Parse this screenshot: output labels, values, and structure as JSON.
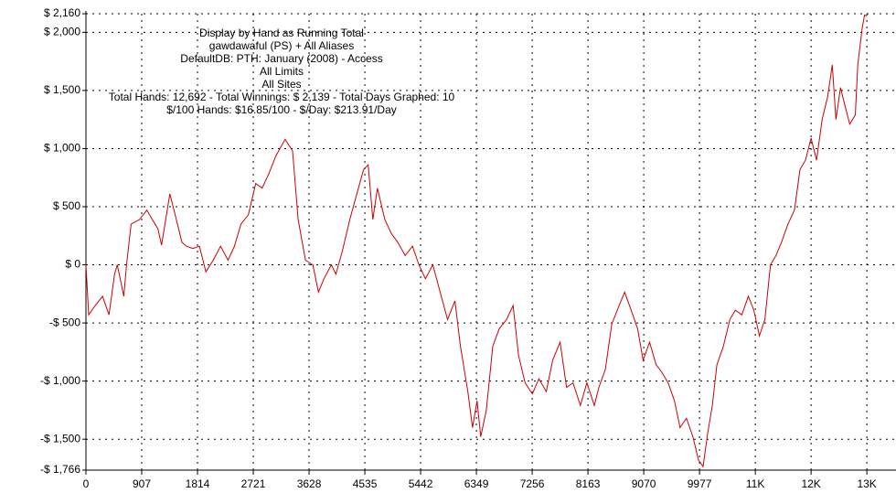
{
  "chart_data": {
    "type": "line",
    "annotations": [
      "Display by Hand as Running Total",
      "gawdawaful (PS) + All Aliases",
      "DefaultDB: PTH: January (2008) - Access",
      "All Limits",
      "All Sites",
      "Total Hands: 12,692 - Total Winnings: $ 2,139 - Total Days Graphed: 10",
      "$/100 Hands: $16.85/100 - $/Day: $213.91/Day"
    ],
    "color": "#cc0000",
    "grid": true,
    "xlim": [
      0,
      12800
    ],
    "ylim": [
      -1766,
      2160
    ],
    "xticks": [
      0,
      907,
      1814,
      2721,
      3628,
      4535,
      5442,
      6349,
      7256,
      8163,
      9070,
      9977,
      {
        "value": 10884,
        "label": "11K"
      },
      {
        "value": 11791,
        "label": "12K"
      },
      {
        "value": 12698,
        "label": "13K"
      }
    ],
    "yticks": [
      {
        "value": -1766,
        "label": "-$ 1,766"
      },
      {
        "value": -1500,
        "label": "-$ 1,500"
      },
      {
        "value": -1000,
        "label": "-$ 1,000"
      },
      {
        "value": -500,
        "label": "-$ 500"
      },
      {
        "value": 0,
        "label": "$ 0"
      },
      {
        "value": 500,
        "label": "$ 500"
      },
      {
        "value": 1000,
        "label": "$ 1,000"
      },
      {
        "value": 1500,
        "label": "$ 1,500"
      },
      {
        "value": 2000,
        "label": "$ 2,000"
      },
      {
        "value": 2160,
        "label": "$ 2,160"
      }
    ],
    "x": [
      0,
      45,
      150,
      270,
      375,
      465,
      510,
      615,
      660,
      735,
      870,
      990,
      1080,
      1170,
      1230,
      1365,
      1470,
      1560,
      1635,
      1740,
      1845,
      1950,
      2070,
      2190,
      2310,
      2415,
      2520,
      2640,
      2760,
      2865,
      2970,
      3090,
      3240,
      3360,
      3450,
      3570,
      3690,
      3780,
      3870,
      3990,
      4065,
      4170,
      4290,
      4395,
      4515,
      4590,
      4665,
      4740,
      4860,
      4965,
      5070,
      5190,
      5310,
      5415,
      5520,
      5640,
      5760,
      5880,
      6000,
      6090,
      6210,
      6285,
      6360,
      6420,
      6510,
      6615,
      6720,
      6840,
      6945,
      7035,
      7140,
      7260,
      7365,
      7485,
      7590,
      7710,
      7815,
      7920,
      8040,
      8145,
      8265,
      8340,
      8445,
      8550,
      8670,
      8760,
      8865,
      8970,
      9060,
      9165,
      9270,
      9360,
      9465,
      9570,
      9660,
      9765,
      9870,
      9960,
      10035,
      10110,
      10185,
      10260,
      10365,
      10470,
      10560,
      10665,
      10770,
      10860,
      10950,
      11040,
      11130,
      11220,
      11310,
      11415,
      11520,
      11610,
      11700,
      11790,
      11880,
      11970,
      12060,
      12135,
      12195,
      12270,
      12360,
      12420,
      12510,
      12550,
      12620,
      12660,
      12692
    ],
    "values": [
      0,
      -430,
      -350,
      -270,
      -430,
      -80,
      0,
      -270,
      0,
      350,
      390,
      470,
      390,
      310,
      170,
      610,
      390,
      195,
      160,
      140,
      160,
      -60,
      40,
      160,
      40,
      160,
      350,
      430,
      700,
      660,
      780,
      940,
      1080,
      980,
      390,
      40,
      0,
      -235,
      -120,
      0,
      -80,
      120,
      390,
      590,
      820,
      860,
      390,
      660,
      390,
      270,
      195,
      80,
      160,
      0,
      -120,
      0,
      -235,
      -470,
      -310,
      -700,
      -1090,
      -1400,
      -1170,
      -1480,
      -1250,
      -700,
      -550,
      -470,
      -350,
      -780,
      -1015,
      -1110,
      -980,
      -1090,
      -820,
      -665,
      -1055,
      -1015,
      -1210,
      -1015,
      -1210,
      -1055,
      -900,
      -510,
      -350,
      -235,
      -390,
      -550,
      -820,
      -665,
      -860,
      -920,
      -1015,
      -1170,
      -1400,
      -1320,
      -1480,
      -1680,
      -1735,
      -1445,
      -1210,
      -860,
      -700,
      -470,
      -390,
      -430,
      -270,
      -390,
      -610,
      -470,
      0,
      80,
      195,
      350,
      470,
      820,
      900,
      1090,
      900,
      1250,
      1445,
      1720,
      1250,
      1525,
      1330,
      1210,
      1290,
      1720,
      2030,
      2150,
      2139
    ]
  }
}
